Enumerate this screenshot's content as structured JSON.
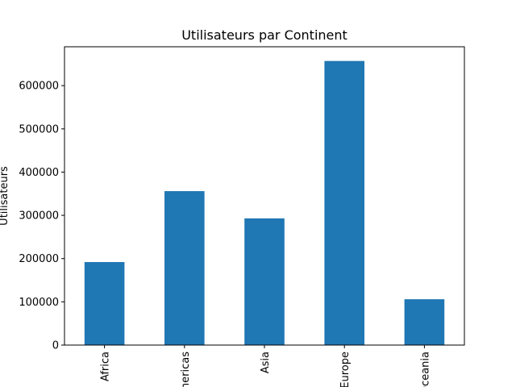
{
  "chart_data": {
    "type": "bar",
    "title": "Utilisateurs par Continent",
    "xlabel": "",
    "ylabel": "Utilisateurs",
    "categories": [
      "Africa",
      "Americas",
      "Asia",
      "Europe",
      "Oceania"
    ],
    "values": [
      192000,
      356000,
      293000,
      657000,
      106000
    ],
    "ylim": [
      0,
      689850
    ],
    "yticks": [
      0,
      100000,
      200000,
      300000,
      400000,
      500000,
      600000
    ],
    "ytick_labels": [
      "0",
      "100000",
      "200000",
      "300000",
      "400000",
      "500000",
      "600000"
    ],
    "bar_color": "#1f77b4",
    "grid": false,
    "legend": "none"
  }
}
